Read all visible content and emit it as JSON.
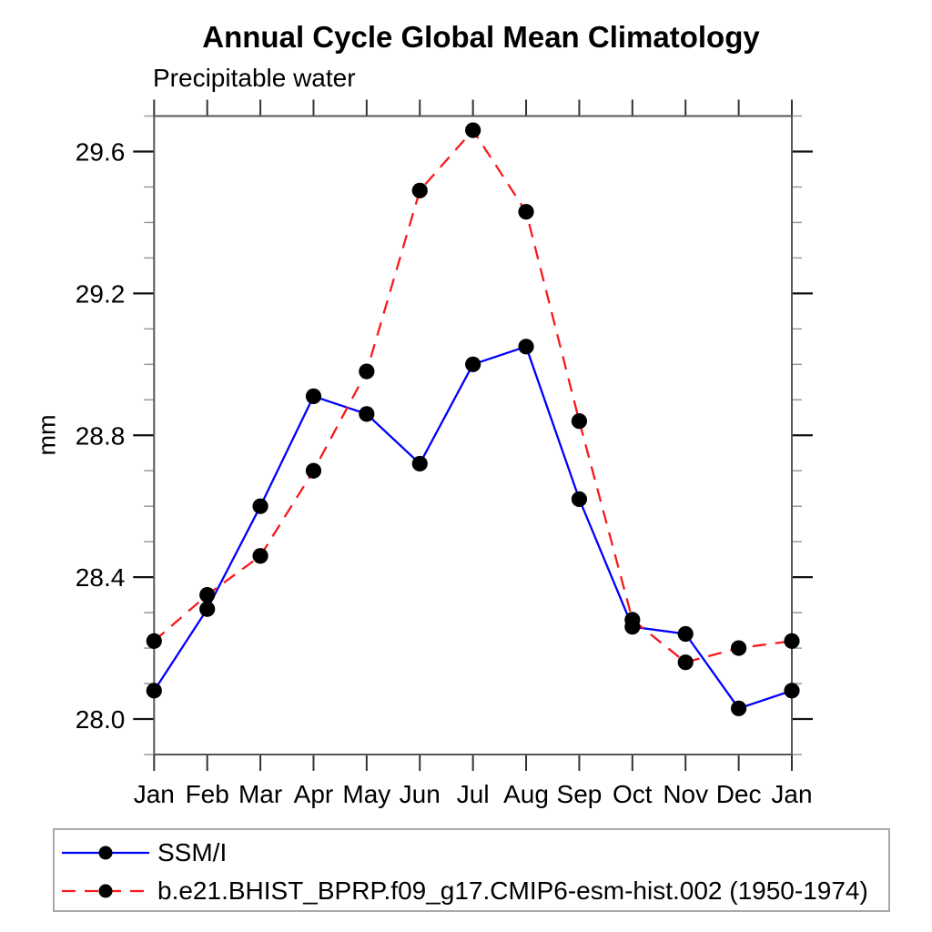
{
  "chart_data": {
    "type": "line",
    "title": "Annual Cycle Global Mean Climatology",
    "subtitle": "Precipitable water",
    "ylabel": "mm",
    "xlabel": "",
    "categories": [
      "Jan",
      "Feb",
      "Mar",
      "Apr",
      "May",
      "Jun",
      "Jul",
      "Aug",
      "Sep",
      "Oct",
      "Nov",
      "Dec",
      "Jan"
    ],
    "ylim": [
      27.9,
      29.7
    ],
    "ytick_major": [
      28.0,
      28.4,
      28.8,
      29.2,
      29.6
    ],
    "ytick_minor_step": 0.1,
    "grid": false,
    "legend_position": "bottom-left-box",
    "series": [
      {
        "name": "SSM/I",
        "color": "#0000ff",
        "line_style": "solid",
        "marker": "filled-circle",
        "marker_color": "#000000",
        "values": [
          28.08,
          28.31,
          28.6,
          28.91,
          28.86,
          28.72,
          29.0,
          29.05,
          28.62,
          28.26,
          28.24,
          28.03,
          28.08
        ]
      },
      {
        "name": "b.e21.BHIST_BPRP.f09_g17.CMIP6-esm-hist.002 (1950-1974)",
        "color": "#f8191d",
        "line_style": "dashed",
        "marker": "filled-circle",
        "marker_color": "#000000",
        "values": [
          28.22,
          28.35,
          28.46,
          28.7,
          28.98,
          29.49,
          29.66,
          29.43,
          28.84,
          28.28,
          28.16,
          28.2,
          28.22
        ]
      }
    ]
  },
  "colors": {
    "axis": "#555555",
    "tick_x": "#333333",
    "tick_major": "#111111",
    "tick_minor": "#999999",
    "text": "#000000",
    "legend_border": "#a8a8a8",
    "background": "#ffffff"
  }
}
